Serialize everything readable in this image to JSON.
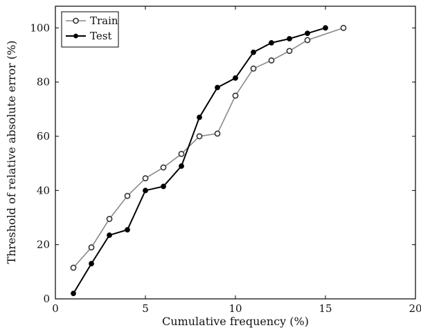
{
  "chart_data": {
    "type": "line",
    "title": "",
    "xlabel": "Cumulative frequency (%)",
    "ylabel": "Threshold of relative absolute error (%)",
    "xlim": [
      0,
      20
    ],
    "ylim": [
      0,
      108
    ],
    "xticks": [
      0,
      5,
      10,
      15,
      20
    ],
    "yticks": [
      0,
      20,
      40,
      60,
      80,
      100
    ],
    "grid": false,
    "legend_position": "top-left",
    "series": [
      {
        "name": "Train",
        "marker": "open-circle",
        "line_color": "#888888",
        "marker_color": "#333333",
        "x": [
          1,
          2,
          3,
          4,
          5,
          6,
          7,
          8,
          9,
          10,
          11,
          12,
          13,
          14,
          16
        ],
        "y": [
          11.5,
          19,
          29.5,
          38,
          44.5,
          48.5,
          53.5,
          60,
          61,
          75,
          85,
          88,
          91.5,
          95.5,
          100
        ]
      },
      {
        "name": "Test",
        "marker": "filled-circle",
        "line_color": "#000000",
        "marker_color": "#000000",
        "x": [
          1,
          2,
          3,
          4,
          5,
          6,
          7,
          8,
          9,
          10,
          11,
          12,
          13,
          14,
          15
        ],
        "y": [
          2,
          13,
          23.5,
          25.5,
          40,
          41.5,
          49,
          67,
          78,
          81.5,
          91,
          94.5,
          96,
          98,
          100
        ]
      }
    ]
  }
}
